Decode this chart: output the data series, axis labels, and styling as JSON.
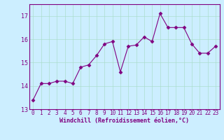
{
  "x": [
    0,
    1,
    2,
    3,
    4,
    5,
    6,
    7,
    8,
    9,
    10,
    11,
    12,
    13,
    14,
    15,
    16,
    17,
    18,
    19,
    20,
    21,
    22,
    23
  ],
  "y": [
    13.4,
    14.1,
    14.1,
    14.2,
    14.2,
    14.1,
    14.8,
    14.9,
    15.3,
    15.8,
    15.9,
    14.6,
    15.7,
    15.75,
    16.1,
    15.9,
    17.1,
    16.5,
    16.5,
    16.5,
    15.8,
    15.4,
    15.4,
    15.7
  ],
  "line_color": "#800080",
  "marker": "D",
  "marker_size": 2.5,
  "bg_color": "#cceeff",
  "grid_color": "#aaddcc",
  "xlabel": "Windchill (Refroidissement éolien,°C)",
  "xlabel_color": "#800080",
  "tick_color": "#800080",
  "spine_color": "#800080",
  "ylim": [
    13,
    17.5
  ],
  "xlim": [
    -0.5,
    23.5
  ],
  "yticks": [
    13,
    14,
    15,
    16,
    17
  ],
  "xticks": [
    0,
    1,
    2,
    3,
    4,
    5,
    6,
    7,
    8,
    9,
    10,
    11,
    12,
    13,
    14,
    15,
    16,
    17,
    18,
    19,
    20,
    21,
    22,
    23
  ],
  "tick_fontsize": 5.5,
  "xlabel_fontsize": 6.0
}
